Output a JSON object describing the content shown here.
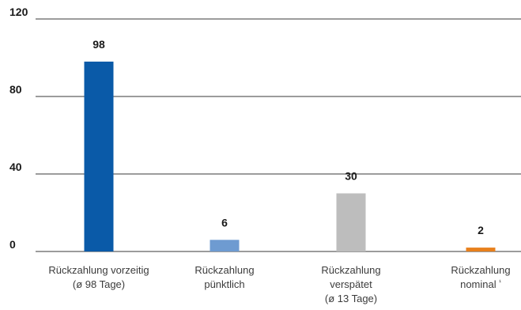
{
  "chart_data": {
    "type": "bar",
    "title": "",
    "xlabel": "",
    "ylabel": "",
    "ylim": [
      0,
      120
    ],
    "yticks": [
      0,
      40,
      80,
      120
    ],
    "grid": true,
    "categories": [
      [
        "Rückzahlung vorzeitig",
        "(ø 98 Tage)"
      ],
      [
        "Rückzahlung",
        "pünktlich"
      ],
      [
        "Rückzahlung",
        "verspätet",
        "(ø 13 Tage)"
      ],
      [
        "Rückzahlung",
        "nominal ¹"
      ]
    ],
    "values": [
      98,
      6,
      30,
      2
    ],
    "colors": [
      "#0a5aa8",
      "#6e9bd1",
      "#bdbdbd",
      "#e8801c"
    ]
  }
}
